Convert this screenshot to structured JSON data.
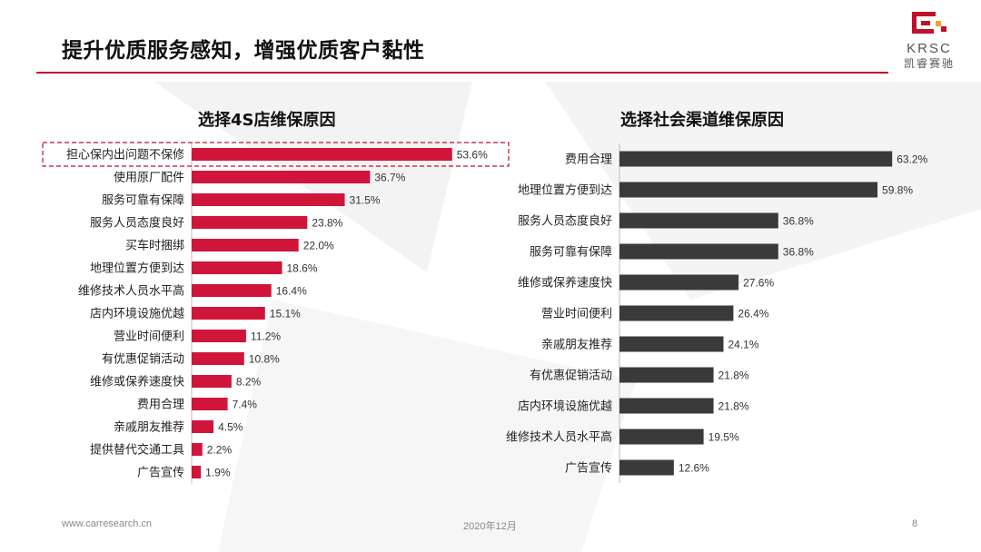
{
  "slide": {
    "title": "提升优质服务感知，增强优质客户黏性",
    "logo_text": "KRSC",
    "logo_subtext": "凯睿赛驰",
    "footer": {
      "website": "www.carresearch.cn",
      "date": "2020年12月",
      "page_number": "8"
    }
  },
  "colors": {
    "accent": "#c0102b",
    "left_bar": "#d0153b",
    "right_bar": "#3a3a3a",
    "rule": "#c0102b"
  },
  "chart_data": [
    {
      "type": "bar",
      "orientation": "horizontal",
      "title": "选择4S店维保原因",
      "unit": "%",
      "highlighted": [
        "担心保内出问题不保修"
      ],
      "categories": [
        "担心保内出问题不保修",
        "使用原厂配件",
        "服务可靠有保障",
        "服务人员态度良好",
        "买车时捆绑",
        "地理位置方便到达",
        "维修技术人员水平高",
        "店内环境设施优越",
        "营业时间便利",
        "有优惠促销活动",
        "维修或保养速度快",
        "费用合理",
        "亲戚朋友推荐",
        "提供替代交通工具",
        "广告宣传"
      ],
      "values": [
        53.6,
        36.7,
        31.5,
        23.8,
        22.0,
        18.6,
        16.4,
        15.1,
        11.2,
        10.8,
        8.2,
        7.4,
        4.5,
        2.2,
        1.9
      ],
      "labels": [
        "53.6%",
        "36.7%",
        "31.5%",
        "23.8%",
        "22.0%",
        "18.6%",
        "16.4%",
        "15.1%",
        "11.2%",
        "10.8%",
        "8.2%",
        "7.4%",
        "4.5%",
        "2.2%",
        "1.9%"
      ]
    },
    {
      "type": "bar",
      "orientation": "horizontal",
      "title": "选择社会渠道维保原因",
      "unit": "%",
      "categories": [
        "费用合理",
        "地理位置方便到达",
        "服务人员态度良好",
        "服务可靠有保障",
        "维修或保养速度快",
        "营业时间便利",
        "亲戚朋友推荐",
        "有优惠促销活动",
        "店内环境设施优越",
        "维修技术人员水平高",
        "广告宣传"
      ],
      "values": [
        63.2,
        59.8,
        36.8,
        36.8,
        27.6,
        26.4,
        24.1,
        21.8,
        21.8,
        19.5,
        12.6
      ],
      "labels": [
        "63.2%",
        "59.8%",
        "36.8%",
        "36.8%",
        "27.6%",
        "26.4%",
        "24.1%",
        "21.8%",
        "21.8%",
        "19.5%",
        "12.6%"
      ]
    }
  ]
}
